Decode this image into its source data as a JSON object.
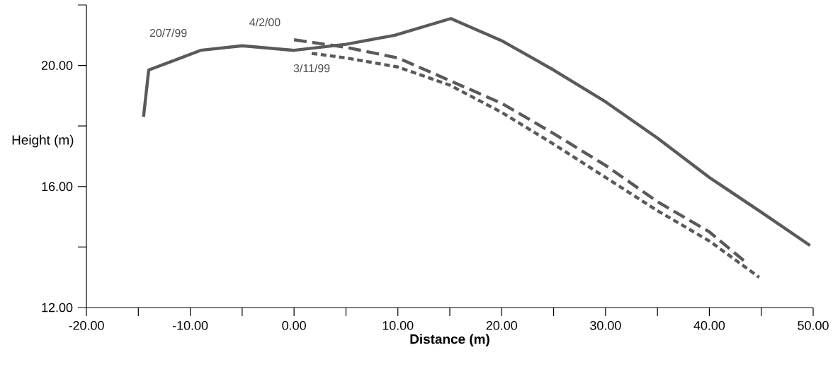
{
  "chart_data": {
    "type": "line",
    "xlabel": "Distance (m)",
    "ylabel": "Height (m)",
    "xlim": [
      -20,
      50
    ],
    "ylim": [
      12,
      22
    ],
    "xticks": [
      {
        "value": -20,
        "label": "-20.00"
      },
      {
        "value": -15,
        "label": null
      },
      {
        "value": -10,
        "label": "-10.00"
      },
      {
        "value": -5,
        "label": null
      },
      {
        "value": 0,
        "label": "0.00"
      },
      {
        "value": 5,
        "label": null
      },
      {
        "value": 10,
        "label": "10.00"
      },
      {
        "value": 15,
        "label": null
      },
      {
        "value": 20,
        "label": "20.00"
      },
      {
        "value": 25,
        "label": null
      },
      {
        "value": 30,
        "label": "30.00"
      },
      {
        "value": 35,
        "label": null
      },
      {
        "value": 40,
        "label": "40.00"
      },
      {
        "value": 45,
        "label": null
      },
      {
        "value": 50,
        "label": "50.00"
      }
    ],
    "yticks": [
      {
        "value": 12,
        "label": "12.00"
      },
      {
        "value": 14,
        "label": null
      },
      {
        "value": 16,
        "label": "16.00"
      },
      {
        "value": 18,
        "label": null
      },
      {
        "value": 20,
        "label": "20.00"
      },
      {
        "value": 22,
        "label": null
      }
    ],
    "grid": false,
    "legend": false,
    "marker": "none",
    "series": [
      {
        "name": "20/7/99",
        "color": "#5a5a5a",
        "line_style": "solid",
        "x": [
          -14.5,
          -14,
          -9,
          -5,
          0,
          5,
          9.7,
          15.1,
          20.1,
          25,
          30,
          35,
          40,
          45,
          49.7
        ],
        "values": [
          18.3,
          19.85,
          20.5,
          20.65,
          20.5,
          20.7,
          21.0,
          21.55,
          20.8,
          19.85,
          18.8,
          17.6,
          16.3,
          15.15,
          14.05
        ]
      },
      {
        "name": "4/2/00",
        "color": "#5a5a5a",
        "line_style": "dashed",
        "x": [
          0,
          5,
          10,
          15,
          20,
          25,
          30,
          35,
          40,
          43.5
        ],
        "values": [
          20.85,
          20.6,
          20.25,
          19.5,
          18.75,
          17.75,
          16.7,
          15.5,
          14.5,
          13.5
        ]
      },
      {
        "name": "3/11/99",
        "color": "#5a5a5a",
        "line_style": "dotted",
        "x": [
          1.7,
          5,
          10,
          15,
          20,
          25,
          30,
          35,
          40,
          44.8
        ],
        "values": [
          20.4,
          20.25,
          19.95,
          19.35,
          18.45,
          17.4,
          16.3,
          15.2,
          14.2,
          13.0
        ]
      }
    ]
  }
}
